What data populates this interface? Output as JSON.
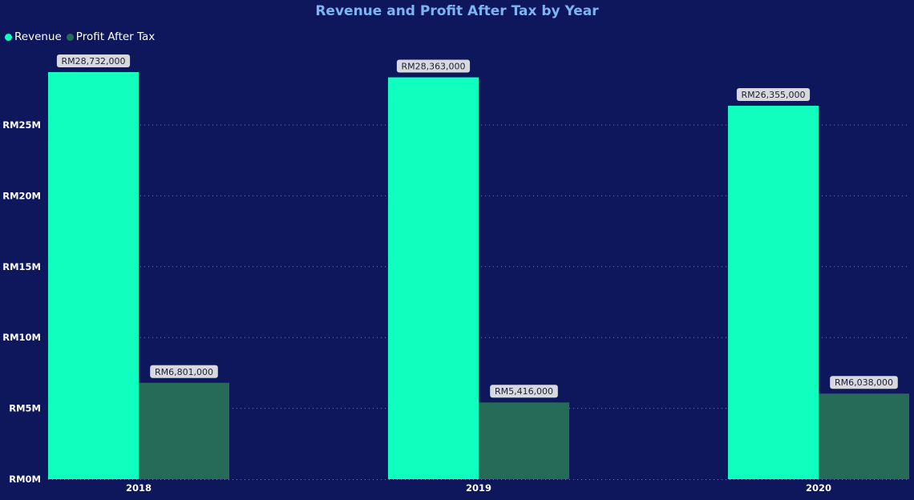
{
  "colors": {
    "background": "#0e175c",
    "title": "#7fb4f2",
    "revenue": "#10ffbf",
    "profit_after_tax": "#266a58",
    "gridline": "#6f7bb0",
    "label_bg": "#d7d9dd",
    "label_text": "#1b1e3a"
  },
  "chart_data": {
    "type": "bar",
    "title": "Revenue and Profit After Tax by Year",
    "categories": [
      "2018",
      "2019",
      "2020"
    ],
    "series": [
      {
        "name": "Revenue",
        "values": [
          28732000,
          28363000,
          26355000
        ],
        "labels": [
          "RM28,732,000",
          "RM28,363,000",
          "RM26,355,000"
        ]
      },
      {
        "name": "Profit After Tax",
        "values": [
          6801000,
          5416000,
          6038000
        ],
        "labels": [
          "RM6,801,000",
          "RM5,416,000",
          "RM6,038,000"
        ]
      }
    ],
    "ylim": [
      0,
      28732000
    ],
    "yticks": [
      0,
      5000000,
      10000000,
      15000000,
      20000000,
      25000000
    ],
    "ytick_labels": [
      "RM0M",
      "RM5M",
      "RM10M",
      "RM15M",
      "RM20M",
      "RM25M"
    ],
    "grid": true,
    "legend_position": "top-left"
  }
}
